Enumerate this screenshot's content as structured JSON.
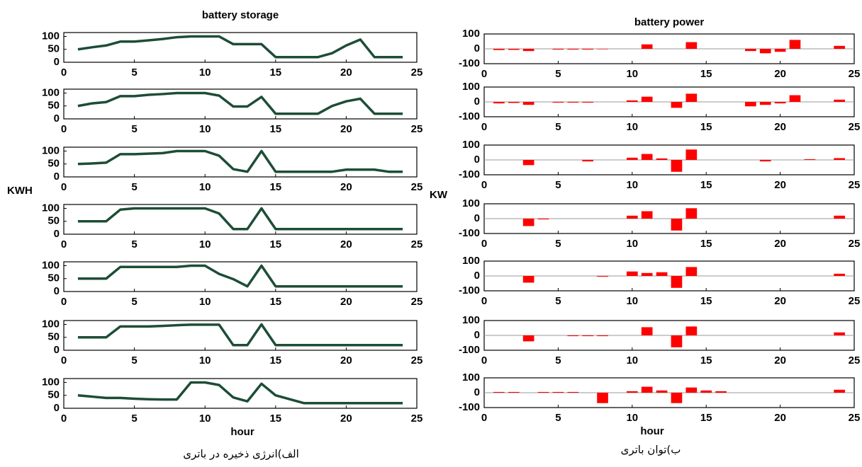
{
  "chart_data": [
    {
      "type": "line",
      "title": "battery storage",
      "color": "#1d4d36",
      "x": [
        1,
        2,
        3,
        4,
        5,
        6,
        7,
        8,
        9,
        10,
        11,
        12,
        13,
        14,
        15,
        16,
        17,
        18,
        19,
        20,
        21,
        22,
        23,
        24
      ],
      "values": [
        50,
        58,
        65,
        80,
        80,
        85,
        90,
        97,
        100,
        100,
        100,
        70,
        70,
        70,
        20,
        20,
        20,
        20,
        35,
        65,
        88,
        20,
        20,
        20
      ],
      "xlim": [
        0,
        25
      ],
      "xticks": [
        0,
        5,
        10,
        15,
        20,
        25
      ],
      "ylim": [
        0,
        115
      ],
      "yticks": [
        0,
        50,
        100
      ]
    },
    {
      "type": "line",
      "color": "#1d4d36",
      "x": [
        1,
        2,
        3,
        4,
        5,
        6,
        7,
        8,
        9,
        10,
        11,
        12,
        13,
        14,
        15,
        16,
        17,
        18,
        19,
        20,
        21,
        22,
        23,
        24
      ],
      "values": [
        50,
        60,
        65,
        88,
        88,
        93,
        96,
        100,
        100,
        100,
        90,
        48,
        48,
        85,
        20,
        20,
        20,
        20,
        50,
        68,
        78,
        20,
        20,
        20
      ],
      "xlim": [
        0,
        25
      ],
      "xticks": [
        0,
        5,
        10,
        15,
        20,
        25
      ],
      "ylim": [
        0,
        115
      ],
      "yticks": [
        0,
        50,
        100
      ]
    },
    {
      "type": "line",
      "color": "#1d4d36",
      "x": [
        1,
        2,
        3,
        4,
        5,
        6,
        7,
        8,
        9,
        10,
        11,
        12,
        13,
        14,
        15,
        16,
        17,
        18,
        19,
        20,
        21,
        22,
        23,
        24
      ],
      "values": [
        50,
        52,
        55,
        88,
        88,
        90,
        92,
        100,
        100,
        100,
        82,
        30,
        20,
        100,
        20,
        20,
        20,
        20,
        20,
        28,
        28,
        28,
        20,
        20
      ],
      "xlim": [
        0,
        25
      ],
      "xticks": [
        0,
        5,
        10,
        15,
        20,
        25
      ],
      "ylim": [
        0,
        115
      ],
      "yticks": [
        0,
        50,
        100
      ]
    },
    {
      "type": "line",
      "y_label": "KWH",
      "color": "#1d4d36",
      "x": [
        1,
        2,
        3,
        4,
        5,
        6,
        7,
        8,
        9,
        10,
        11,
        12,
        13,
        14,
        15,
        16,
        17,
        18,
        19,
        20,
        21,
        22,
        23,
        24
      ],
      "values": [
        50,
        50,
        50,
        95,
        100,
        100,
        100,
        100,
        100,
        100,
        80,
        20,
        20,
        100,
        20,
        20,
        20,
        20,
        20,
        20,
        20,
        20,
        20,
        20
      ],
      "xlim": [
        0,
        25
      ],
      "xticks": [
        0,
        5,
        10,
        15,
        20,
        25
      ],
      "ylim": [
        0,
        115
      ],
      "yticks": [
        0,
        50,
        100
      ]
    },
    {
      "type": "line",
      "color": "#1d4d36",
      "x": [
        1,
        2,
        3,
        4,
        5,
        6,
        7,
        8,
        9,
        10,
        11,
        12,
        13,
        14,
        15,
        16,
        17,
        18,
        19,
        20,
        21,
        22,
        23,
        24
      ],
      "values": [
        50,
        50,
        50,
        95,
        95,
        95,
        95,
        95,
        100,
        100,
        68,
        48,
        20,
        100,
        20,
        20,
        20,
        20,
        20,
        20,
        20,
        20,
        20,
        20
      ],
      "xlim": [
        0,
        25
      ],
      "xticks": [
        0,
        5,
        10,
        15,
        20,
        25
      ],
      "ylim": [
        0,
        115
      ],
      "yticks": [
        0,
        50,
        100
      ]
    },
    {
      "type": "line",
      "color": "#1d4d36",
      "x": [
        1,
        2,
        3,
        4,
        5,
        6,
        7,
        8,
        9,
        10,
        11,
        12,
        13,
        14,
        15,
        16,
        17,
        18,
        19,
        20,
        21,
        22,
        23,
        24
      ],
      "values": [
        50,
        50,
        50,
        92,
        92,
        92,
        94,
        97,
        99,
        99,
        99,
        20,
        20,
        100,
        20,
        20,
        20,
        20,
        20,
        20,
        20,
        20,
        20,
        20
      ],
      "xlim": [
        0,
        25
      ],
      "xticks": [
        0,
        5,
        10,
        15,
        20,
        25
      ],
      "ylim": [
        0,
        115
      ],
      "yticks": [
        0,
        50,
        100
      ]
    },
    {
      "type": "line",
      "x_label": "hour",
      "caption": "الف)انرژی ذخیره در باتری",
      "color": "#1d4d36",
      "x": [
        1,
        2,
        3,
        4,
        5,
        6,
        7,
        8,
        9,
        10,
        11,
        12,
        13,
        14,
        15,
        16,
        17,
        18,
        19,
        20,
        21,
        22,
        23,
        24
      ],
      "values": [
        50,
        45,
        40,
        40,
        37,
        35,
        34,
        34,
        100,
        100,
        90,
        42,
        27,
        95,
        50,
        35,
        20,
        20,
        20,
        20,
        20,
        20,
        20,
        20
      ],
      "xlim": [
        0,
        25
      ],
      "xticks": [
        0,
        5,
        10,
        15,
        20,
        25
      ],
      "ylim": [
        0,
        115
      ],
      "yticks": [
        0,
        50,
        100
      ]
    },
    {
      "type": "bar",
      "title": "battery power",
      "color": "#ff0000",
      "x": [
        1,
        2,
        3,
        4,
        5,
        6,
        7,
        8,
        9,
        10,
        11,
        12,
        13,
        14,
        15,
        16,
        17,
        18,
        19,
        20,
        21,
        22,
        23,
        24
      ],
      "values": [
        -8,
        -7,
        -15,
        0,
        -5,
        -5,
        -5,
        -3,
        0,
        0,
        30,
        0,
        0,
        45,
        0,
        0,
        0,
        -15,
        -30,
        -20,
        60,
        0,
        0,
        20
      ],
      "xlim": [
        0,
        25
      ],
      "xticks": [
        0,
        5,
        10,
        15,
        20,
        25
      ],
      "ylim": [
        -100,
        100
      ],
      "yticks": [
        -100,
        0,
        100
      ]
    },
    {
      "type": "bar",
      "color": "#ff0000",
      "x": [
        1,
        2,
        3,
        4,
        5,
        6,
        7,
        8,
        9,
        10,
        11,
        12,
        13,
        14,
        15,
        16,
        17,
        18,
        19,
        20,
        21,
        22,
        23,
        24
      ],
      "values": [
        -10,
        -7,
        -20,
        0,
        -5,
        -5,
        -5,
        0,
        0,
        10,
        35,
        0,
        -40,
        55,
        0,
        0,
        0,
        -30,
        -20,
        -10,
        45,
        0,
        0,
        15
      ],
      "xlim": [
        0,
        25
      ],
      "xticks": [
        0,
        5,
        10,
        15,
        20,
        25
      ],
      "ylim": [
        -100,
        100
      ],
      "yticks": [
        -100,
        0,
        100
      ]
    },
    {
      "type": "bar",
      "color": "#ff0000",
      "x": [
        1,
        2,
        3,
        4,
        5,
        6,
        7,
        8,
        9,
        10,
        11,
        12,
        13,
        14,
        15,
        16,
        17,
        18,
        19,
        20,
        21,
        22,
        23,
        24
      ],
      "values": [
        0,
        0,
        -35,
        0,
        0,
        0,
        -10,
        0,
        0,
        15,
        40,
        10,
        -80,
        70,
        0,
        0,
        0,
        0,
        -10,
        0,
        0,
        5,
        0,
        12
      ],
      "xlim": [
        0,
        25
      ],
      "xticks": [
        0,
        5,
        10,
        15,
        20,
        25
      ],
      "ylim": [
        -100,
        100
      ],
      "yticks": [
        -100,
        0,
        100
      ]
    },
    {
      "type": "bar",
      "y_label": "KW",
      "color": "#ff0000",
      "x": [
        1,
        2,
        3,
        4,
        5,
        6,
        7,
        8,
        9,
        10,
        11,
        12,
        13,
        14,
        15,
        16,
        17,
        18,
        19,
        20,
        21,
        22,
        23,
        24
      ],
      "values": [
        0,
        0,
        -50,
        -5,
        0,
        0,
        0,
        0,
        0,
        20,
        50,
        0,
        -80,
        70,
        0,
        0,
        0,
        0,
        0,
        0,
        0,
        0,
        0,
        20
      ],
      "xlim": [
        0,
        25
      ],
      "xticks": [
        0,
        5,
        10,
        15,
        20,
        25
      ],
      "ylim": [
        -100,
        100
      ],
      "yticks": [
        -100,
        0,
        100
      ]
    },
    {
      "type": "bar",
      "color": "#ff0000",
      "x": [
        1,
        2,
        3,
        4,
        5,
        6,
        7,
        8,
        9,
        10,
        11,
        12,
        13,
        14,
        15,
        16,
        17,
        18,
        19,
        20,
        21,
        22,
        23,
        24
      ],
      "values": [
        0,
        0,
        -45,
        0,
        0,
        0,
        0,
        -5,
        0,
        30,
        20,
        25,
        -80,
        60,
        0,
        0,
        0,
        0,
        0,
        0,
        0,
        0,
        0,
        15
      ],
      "xlim": [
        0,
        25
      ],
      "xticks": [
        0,
        5,
        10,
        15,
        20,
        25
      ],
      "ylim": [
        -100,
        100
      ],
      "yticks": [
        -100,
        0,
        100
      ]
    },
    {
      "type": "bar",
      "color": "#ff0000",
      "x": [
        1,
        2,
        3,
        4,
        5,
        6,
        7,
        8,
        9,
        10,
        11,
        12,
        13,
        14,
        15,
        16,
        17,
        18,
        19,
        20,
        21,
        22,
        23,
        24
      ],
      "values": [
        0,
        0,
        -40,
        0,
        0,
        -5,
        -5,
        -5,
        0,
        0,
        55,
        0,
        -80,
        60,
        0,
        0,
        0,
        0,
        0,
        0,
        0,
        0,
        0,
        20
      ],
      "xlim": [
        0,
        25
      ],
      "xticks": [
        0,
        5,
        10,
        15,
        20,
        25
      ],
      "ylim": [
        -100,
        100
      ],
      "yticks": [
        -100,
        0,
        100
      ]
    },
    {
      "type": "bar",
      "x_label": "hour",
      "caption": "ب)توان باتری",
      "color": "#ff0000",
      "x": [
        1,
        2,
        3,
        4,
        5,
        6,
        7,
        8,
        9,
        10,
        11,
        12,
        13,
        14,
        15,
        16,
        17,
        18,
        19,
        20,
        21,
        22,
        23,
        24
      ],
      "values": [
        5,
        5,
        0,
        5,
        5,
        5,
        0,
        -70,
        0,
        10,
        40,
        15,
        -70,
        35,
        15,
        10,
        0,
        0,
        0,
        0,
        0,
        0,
        0,
        20
      ],
      "xlim": [
        0,
        25
      ],
      "xticks": [
        0,
        5,
        10,
        15,
        20,
        25
      ],
      "ylim": [
        -100,
        100
      ],
      "yticks": [
        -100,
        0,
        100
      ]
    }
  ]
}
